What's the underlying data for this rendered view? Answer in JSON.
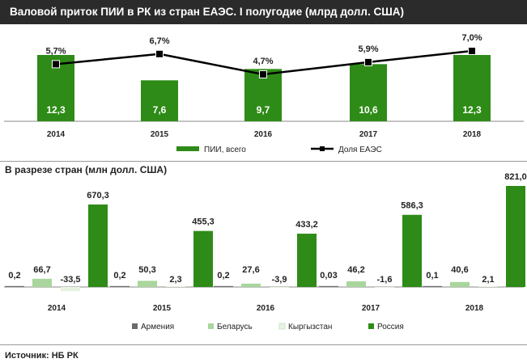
{
  "title": "Валовой приток ПИИ  в РК из стран ЕАЭС. I полугодие  (млрд долл. США)",
  "section2_title": "В разрезе стран (млн долл. США)",
  "source": "Источник:  НБ РК",
  "colors": {
    "green": "#2e8b17",
    "light_green": "#a9d69c",
    "very_light": "#e8f3e2",
    "dark": "#6b6b6b",
    "title_bg": "#2b2b2b"
  },
  "chart_data": [
    {
      "type": "bar",
      "categories": [
        "2014",
        "2015",
        "2016",
        "2017",
        "2018"
      ],
      "series": [
        {
          "name": "ПИИ, всего",
          "values": [
            12.3,
            7.6,
            9.7,
            10.6,
            12.3
          ],
          "labels": [
            "12,3",
            "7,6",
            "9,7",
            "10,6",
            "12,3"
          ]
        },
        {
          "name": "Доля ЕАЭС",
          "type": "line",
          "values": [
            5.7,
            6.7,
            4.7,
            5.9,
            7.0
          ],
          "labels": [
            "5,7%",
            "6,7%",
            "4,7%",
            "5,9%",
            "7,0%"
          ]
        }
      ],
      "legend_position": "bottom"
    },
    {
      "type": "bar",
      "categories": [
        "2014",
        "2015",
        "2016",
        "2017",
        "2018"
      ],
      "series": [
        {
          "name": "Армения",
          "values": [
            0.2,
            0.2,
            0.2,
            0.03,
            0.1
          ],
          "labels": [
            "0,2",
            "0,2",
            "0,2",
            "0,03",
            "0,1"
          ]
        },
        {
          "name": "Беларусь",
          "values": [
            66.7,
            50.3,
            27.6,
            46.2,
            40.6
          ],
          "labels": [
            "66,7",
            "50,3",
            "27,6",
            "46,2",
            "40,6"
          ]
        },
        {
          "name": "Кыргызстан",
          "values": [
            -33.5,
            2.3,
            -3.9,
            -1.6,
            2.1
          ],
          "labels": [
            "-33,5",
            "2,3",
            "-3,9",
            "-1,6",
            "2,1"
          ]
        },
        {
          "name": "Россия",
          "values": [
            670.3,
            455.3,
            433.2,
            586.3,
            821.0
          ],
          "labels": [
            "670,3",
            "455,3",
            "433,2",
            "586,3",
            "821,0"
          ]
        }
      ],
      "legend_position": "bottom"
    }
  ]
}
